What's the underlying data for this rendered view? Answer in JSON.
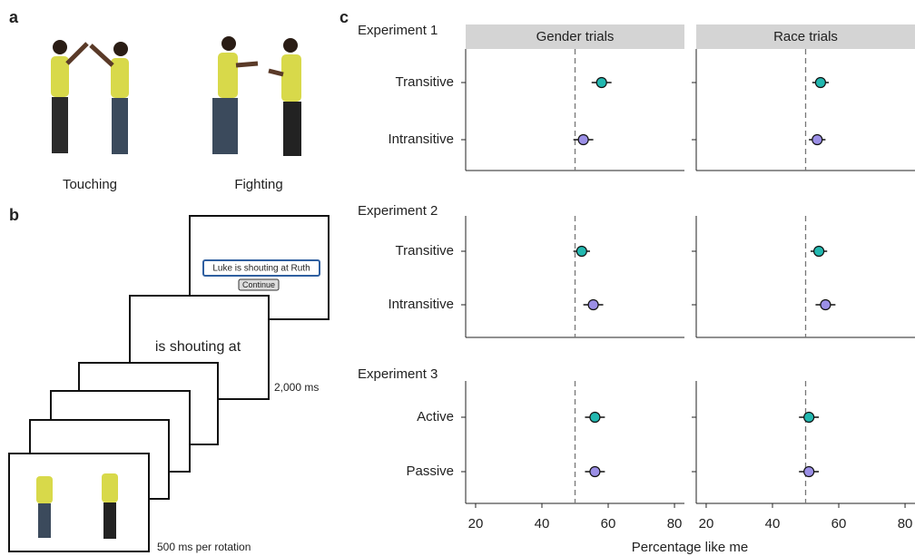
{
  "panel_a": {
    "label": "a",
    "captions": [
      "Touching",
      "Fighting"
    ]
  },
  "panel_b": {
    "label": "b",
    "sentence": "Luke is shouting at Ruth",
    "button": "Continue",
    "verb_screen": "is shouting at",
    "verb_duration": "2,000 ms",
    "rotation": "500 ms per rotation"
  },
  "chart_data": {
    "type": "dot",
    "panel_label": "c",
    "xlabel": "Percentage like me",
    "facet_titles": [
      "Gender trials",
      "Race trials"
    ],
    "xlim": [
      17,
      83
    ],
    "xticks": [
      20,
      40,
      60,
      80
    ],
    "reference_line": 50,
    "colors": [
      "#22b8b0",
      "#9b8fe6"
    ],
    "experiments": [
      {
        "title": "Experiment 1",
        "conditions": [
          "Transitive",
          "Intransitive"
        ],
        "facets": [
          {
            "values": [
              58,
              52.5
            ],
            "errors": [
              3,
              3
            ]
          },
          {
            "values": [
              54.5,
              53.5
            ],
            "errors": [
              2.5,
              2.5
            ]
          }
        ]
      },
      {
        "title": "Experiment 2",
        "conditions": [
          "Transitive",
          "Intransitive"
        ],
        "facets": [
          {
            "values": [
              52,
              55.5
            ],
            "errors": [
              2.5,
              3
            ]
          },
          {
            "values": [
              54,
              56
            ],
            "errors": [
              2.5,
              3
            ]
          }
        ]
      },
      {
        "title": "Experiment 3",
        "conditions": [
          "Active",
          "Passive"
        ],
        "facets": [
          {
            "values": [
              56,
              56
            ],
            "errors": [
              3,
              3
            ]
          },
          {
            "values": [
              51,
              51
            ],
            "errors": [
              3,
              3
            ]
          }
        ]
      }
    ]
  }
}
